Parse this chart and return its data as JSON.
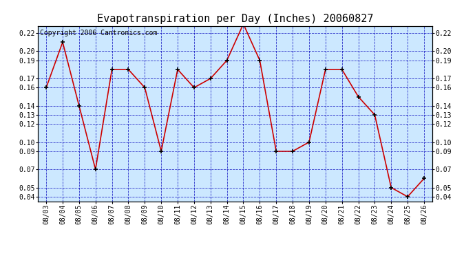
{
  "title": "Evapotranspiration per Day (Inches) 20060827",
  "copyright": "Copyright 2006 Cantronics.com",
  "dates": [
    "08/03",
    "08/04",
    "08/05",
    "08/06",
    "08/07",
    "08/08",
    "08/09",
    "08/10",
    "08/11",
    "08/12",
    "08/13",
    "08/14",
    "08/15",
    "08/16",
    "08/17",
    "08/18",
    "08/19",
    "08/20",
    "08/21",
    "08/22",
    "08/23",
    "08/24",
    "08/25",
    "08/26"
  ],
  "values": [
    0.16,
    0.21,
    0.14,
    0.07,
    0.18,
    0.18,
    0.16,
    0.09,
    0.18,
    0.16,
    0.17,
    0.19,
    0.23,
    0.19,
    0.09,
    0.09,
    0.1,
    0.18,
    0.18,
    0.15,
    0.13,
    0.05,
    0.04,
    0.06
  ],
  "line_color": "#cc0000",
  "bg_color": "#ffffff",
  "plot_bg_color": "#cce8ff",
  "grid_color": "#0000bb",
  "title_fontsize": 11,
  "copyright_fontsize": 7,
  "tick_fontsize": 7,
  "ylim": [
    0.035,
    0.228
  ],
  "yticks": [
    0.04,
    0.05,
    0.07,
    0.09,
    0.1,
    0.12,
    0.13,
    0.14,
    0.16,
    0.17,
    0.19,
    0.2,
    0.22
  ]
}
